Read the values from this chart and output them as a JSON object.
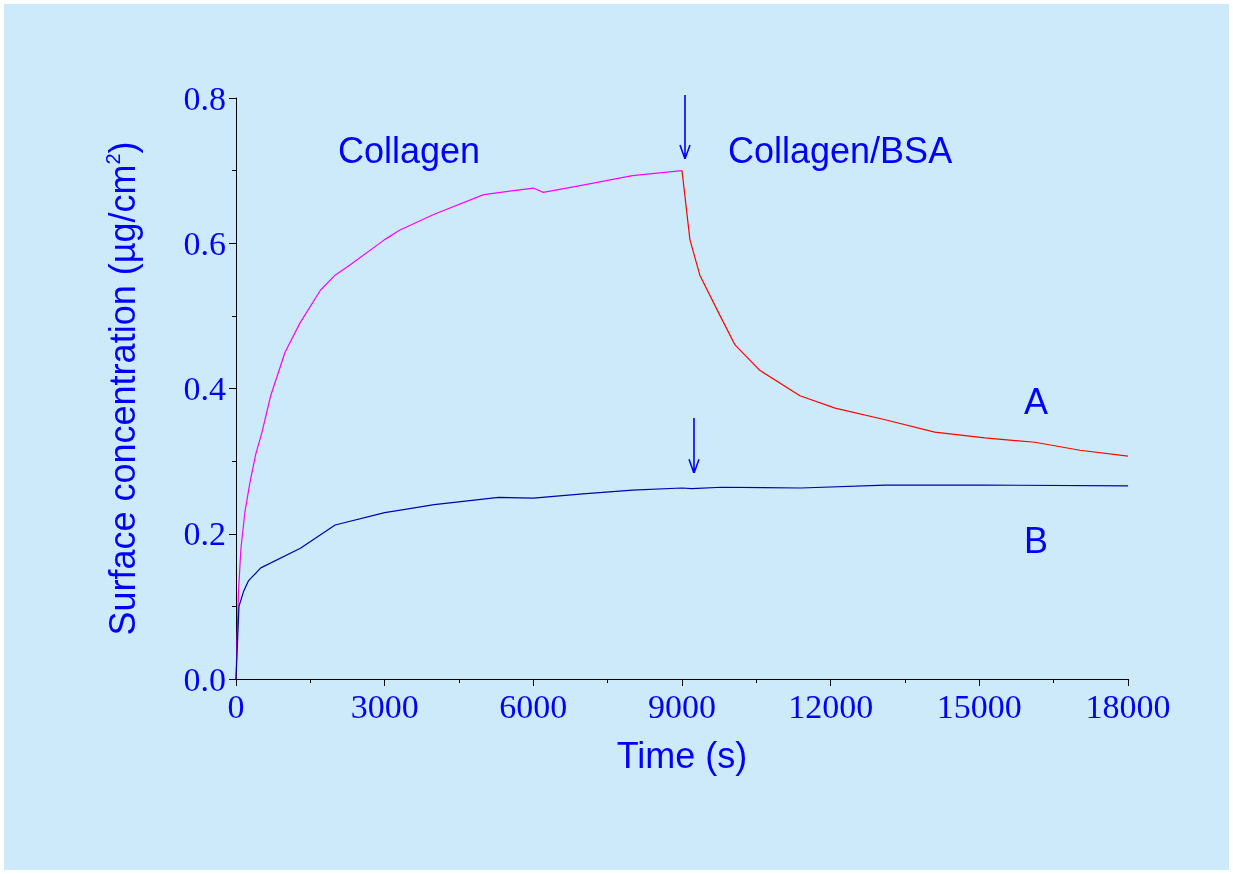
{
  "chart_data": {
    "type": "line",
    "xlabel": "Time (s)",
    "ylabel": "Surface concentration (µg/cm$^{2}$)",
    "xlim": [
      0,
      18000
    ],
    "xticks": [
      0,
      3000,
      6000,
      9000,
      12000,
      15000,
      18000
    ],
    "ylim": [
      0,
      0.8
    ],
    "yticks": [
      {
        "value": 0,
        "label": "0.0"
      },
      0.2,
      0.4,
      0.6,
      0.8
    ],
    "grid": false,
    "marker": "none",
    "line_style": "solid",
    "series": [
      {
        "color": "#ff00ff",
        "x": [
          0,
          50,
          100,
          180,
          280,
          400,
          525,
          700,
          990,
          1290,
          1700,
          2000,
          2300,
          3000,
          3300,
          4000,
          5000,
          6000,
          6200,
          7000,
          8000,
          9000
        ],
        "values": [
          0,
          0.12,
          0.18,
          0.23,
          0.27,
          0.31,
          0.34,
          0.39,
          0.45,
          0.49,
          0.535,
          0.556,
          0.57,
          0.605,
          0.618,
          0.64,
          0.667,
          0.676,
          0.67,
          0.68,
          0.693,
          0.7
        ]
      },
      {
        "name": "A",
        "color": "#ff0000",
        "x": [
          9000,
          9160,
          9360,
          9770,
          10070,
          10570,
          11380,
          12090,
          13100,
          14100,
          15110,
          16120,
          17030,
          18000
        ],
        "values": [
          0.7,
          0.605,
          0.556,
          0.5,
          0.46,
          0.425,
          0.39,
          0.373,
          0.357,
          0.34,
          0.332,
          0.326,
          0.315,
          0.307
        ]
      },
      {
        "name": "B",
        "color": "#0000aa",
        "x": [
          0,
          60,
          150,
          250,
          500,
          1300,
          2000,
          3000,
          4000,
          5300,
          6000,
          7000,
          8000,
          9000,
          9200,
          9800,
          11400,
          13100,
          15100,
          18000
        ],
        "values": [
          0,
          0.1,
          0.12,
          0.135,
          0.153,
          0.18,
          0.212,
          0.229,
          0.24,
          0.25,
          0.249,
          0.255,
          0.26,
          0.263,
          0.262,
          0.264,
          0.263,
          0.267,
          0.267,
          0.266
        ]
      }
    ],
    "annotations": [
      "Collagen",
      "Collagen/BSA"
    ]
  }
}
